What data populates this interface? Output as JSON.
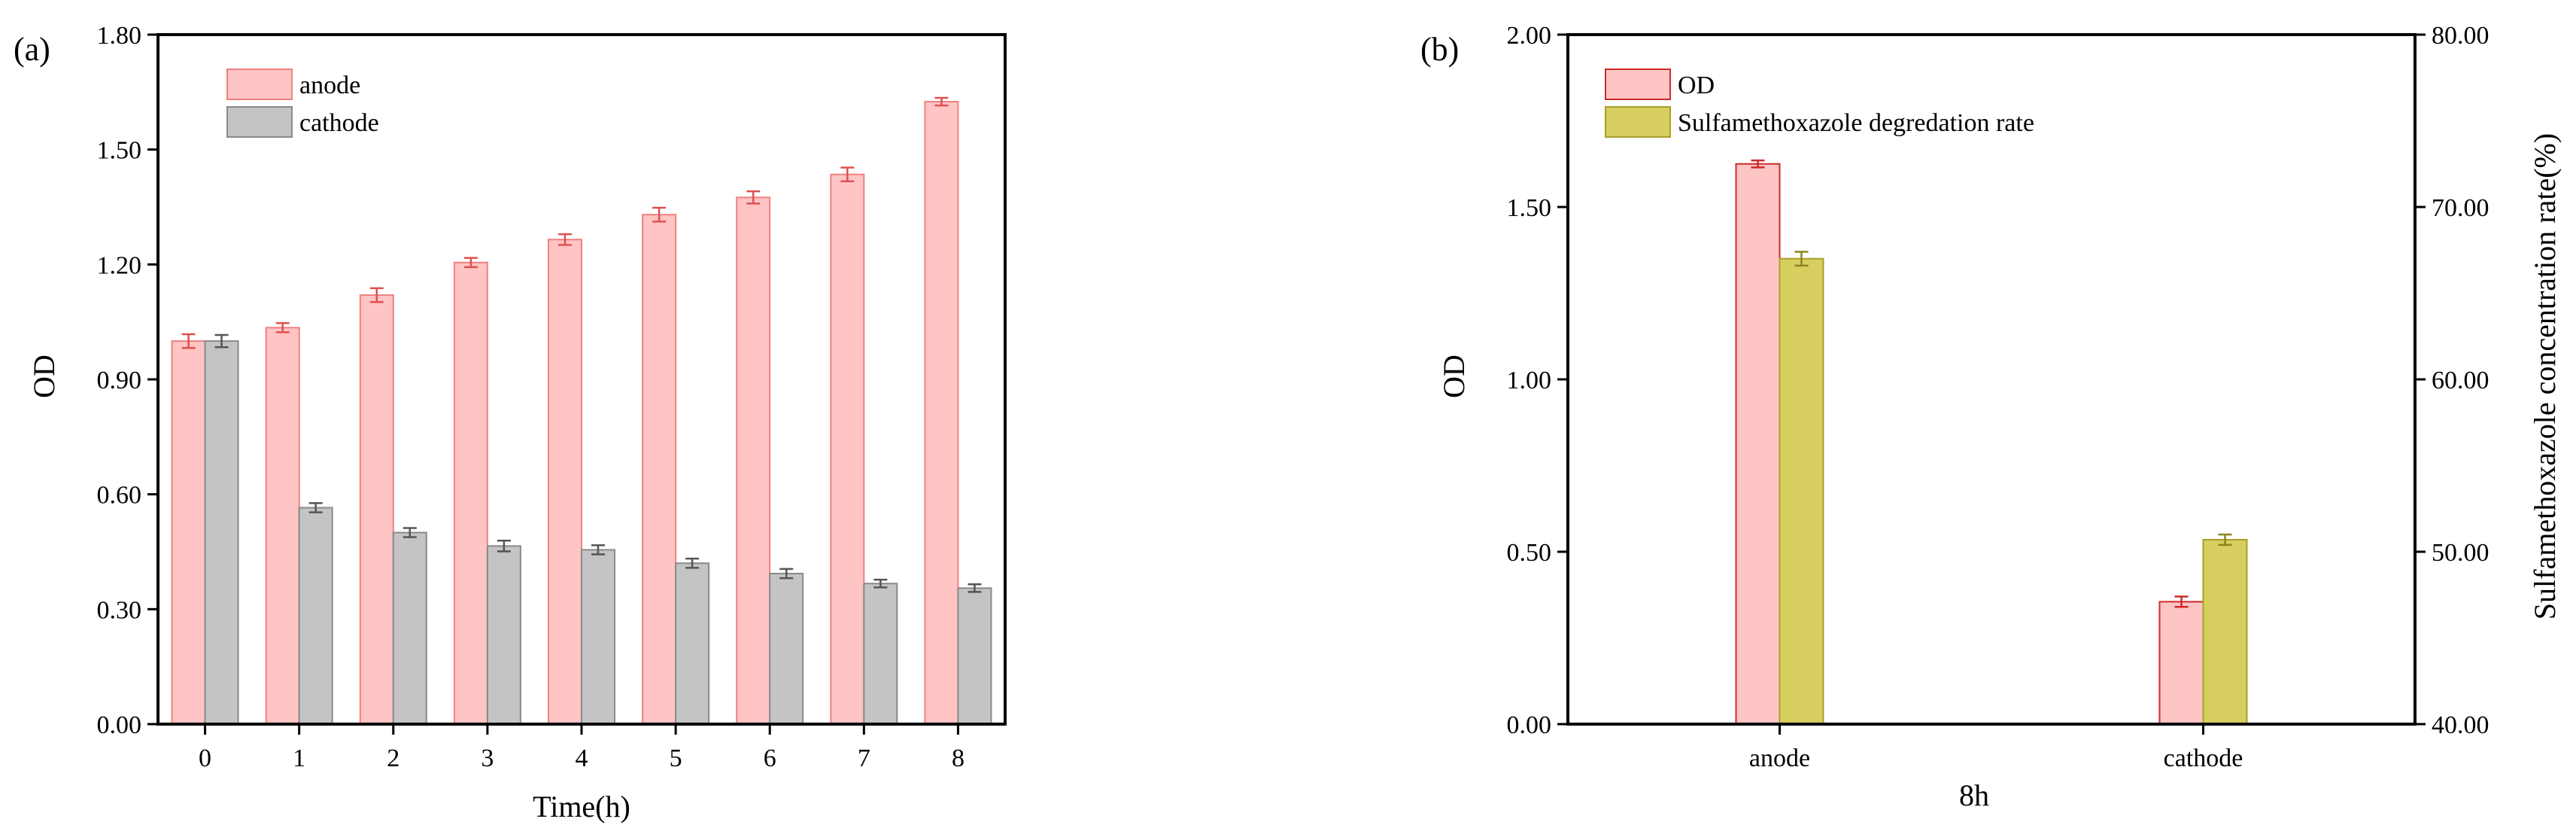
{
  "chart_data": [
    {
      "type": "bar",
      "panel_label": "(a)",
      "xlabel": "Time(h)",
      "ylabel": "OD",
      "categories": [
        "0",
        "1",
        "2",
        "3",
        "4",
        "5",
        "6",
        "7",
        "8"
      ],
      "ylim": [
        0,
        1.8
      ],
      "yticks": [
        "0.00",
        "0.30",
        "0.60",
        "0.90",
        "1.20",
        "1.50",
        "1.80"
      ],
      "legend_position": "top-left",
      "grid": false,
      "series": [
        {
          "name": "anode",
          "color": "#ffc4c4",
          "edge": "#f08080",
          "errcolor": "#e05050",
          "values": [
            1.0,
            1.035,
            1.12,
            1.205,
            1.265,
            1.33,
            1.375,
            1.435,
            1.625
          ],
          "errors": [
            0.018,
            0.012,
            0.018,
            0.012,
            0.014,
            0.018,
            0.016,
            0.018,
            0.01
          ]
        },
        {
          "name": "cathode",
          "color": "#c4c4c4",
          "edge": "#8a8a8a",
          "errcolor": "#555555",
          "values": [
            1.0,
            0.565,
            0.5,
            0.465,
            0.455,
            0.42,
            0.393,
            0.367,
            0.355
          ],
          "errors": [
            0.016,
            0.012,
            0.012,
            0.014,
            0.012,
            0.012,
            0.012,
            0.01,
            0.01
          ]
        }
      ]
    },
    {
      "type": "bar",
      "panel_label": "(b)",
      "xlabel": "8h",
      "ylabel": "OD",
      "ylabel_right": "Sulfamethoxazole concentration rate(%)",
      "categories": [
        "anode",
        "cathode"
      ],
      "ylim": [
        0,
        2.0
      ],
      "yticks": [
        "0.00",
        "0.50",
        "1.00",
        "1.50",
        "2.00"
      ],
      "ylim_right": [
        40,
        80
      ],
      "yticks_right": [
        "40.00",
        "50.00",
        "60.00",
        "70.00",
        "80.00"
      ],
      "legend_position": "top-left",
      "grid": false,
      "series": [
        {
          "name": "OD",
          "axis": "left",
          "color": "#ffc4c4",
          "edge": "#cc2a2a",
          "errcolor": "#cc2a2a",
          "values": [
            1.625,
            0.355
          ],
          "errors": [
            0.01,
            0.015
          ]
        },
        {
          "name": "Sulfamethoxazole degredation rate",
          "axis": "right",
          "color": "#d6ce5e",
          "edge": "#a8a02a",
          "errcolor": "#8a8420",
          "values": [
            67.0,
            50.7
          ],
          "errors": [
            0.4,
            0.3
          ]
        }
      ]
    }
  ]
}
